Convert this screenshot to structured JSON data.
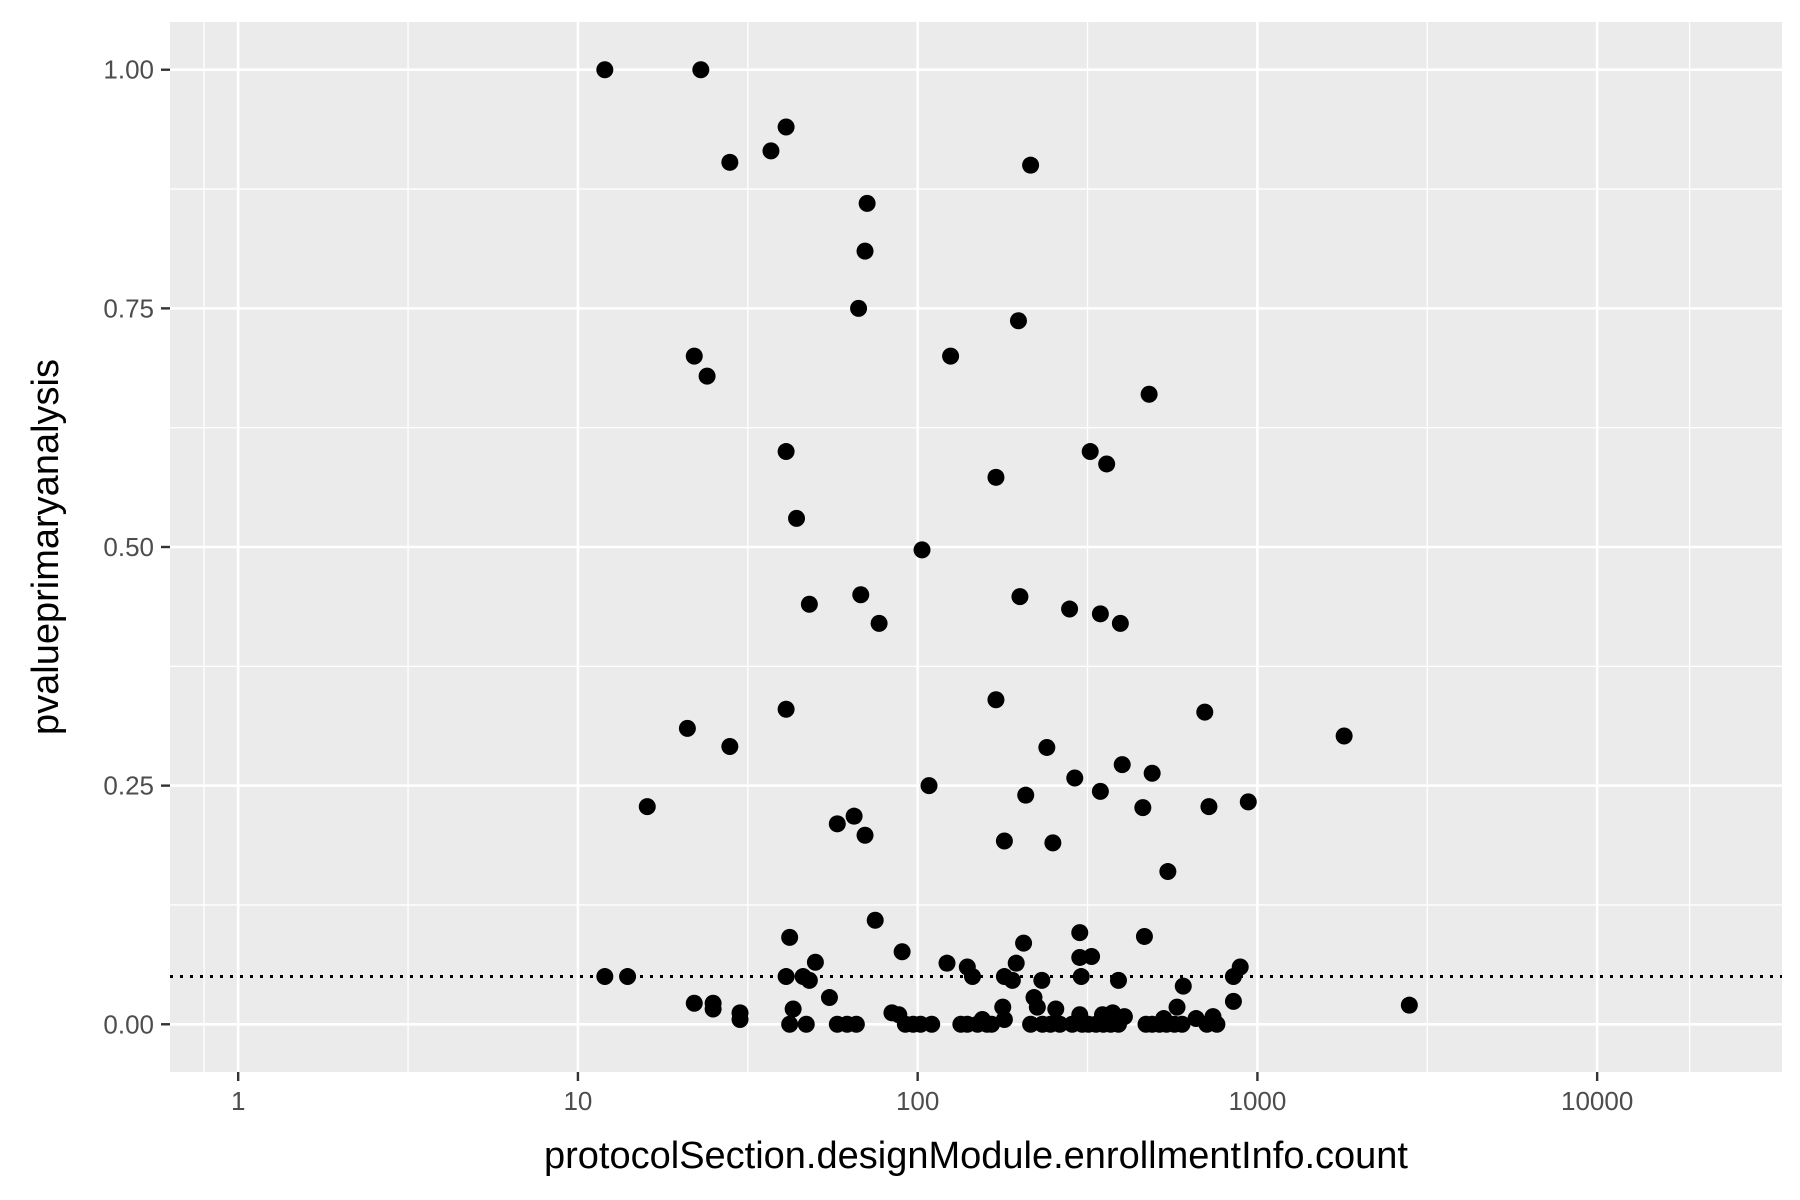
{
  "chart_data": {
    "type": "scatter",
    "title": "",
    "xlabel": "protocolSection.designModule.enrollmentInfo.count",
    "ylabel": "pvalueprimaryanalysis",
    "x_scale": "log10",
    "xlim": [
      0.63,
      35000
    ],
    "ylim": [
      -0.05,
      1.05
    ],
    "x_ticks": [
      1,
      10,
      100,
      1000,
      10000
    ],
    "x_tick_labels": [
      "1",
      "10",
      "100",
      "1000",
      "10000"
    ],
    "y_ticks": [
      0,
      0.25,
      0.5,
      0.75,
      1
    ],
    "y_tick_labels": [
      "0.00",
      "0.25",
      "0.50",
      "0.75",
      "1.00"
    ],
    "reference_line": {
      "y": 0.05,
      "style": "dotted",
      "color": "#000000"
    },
    "grid": true,
    "colors": {
      "panel": "#ebebeb",
      "grid": "#ffffff",
      "point": "#000000"
    },
    "points": [
      [
        12,
        1.0
      ],
      [
        23,
        1.0
      ],
      [
        41,
        0.94
      ],
      [
        37,
        0.915
      ],
      [
        28,
        0.903
      ],
      [
        215,
        0.9
      ],
      [
        71,
        0.86
      ],
      [
        70,
        0.81
      ],
      [
        67,
        0.75
      ],
      [
        198,
        0.737
      ],
      [
        22,
        0.7
      ],
      [
        125,
        0.7
      ],
      [
        24,
        0.679
      ],
      [
        480,
        0.66
      ],
      [
        41,
        0.6
      ],
      [
        322,
        0.6
      ],
      [
        360,
        0.587
      ],
      [
        170,
        0.573
      ],
      [
        44,
        0.53
      ],
      [
        103,
        0.497
      ],
      [
        68,
        0.45
      ],
      [
        200,
        0.448
      ],
      [
        48,
        0.44
      ],
      [
        280,
        0.435
      ],
      [
        345,
        0.43
      ],
      [
        77,
        0.42
      ],
      [
        395,
        0.42
      ],
      [
        170,
        0.34
      ],
      [
        41,
        0.33
      ],
      [
        700,
        0.327
      ],
      [
        21,
        0.31
      ],
      [
        1800,
        0.302
      ],
      [
        28,
        0.291
      ],
      [
        240,
        0.29
      ],
      [
        400,
        0.272
      ],
      [
        490,
        0.263
      ],
      [
        290,
        0.258
      ],
      [
        108,
        0.25
      ],
      [
        345,
        0.244
      ],
      [
        208,
        0.24
      ],
      [
        940,
        0.233
      ],
      [
        16,
        0.228
      ],
      [
        720,
        0.228
      ],
      [
        460,
        0.227
      ],
      [
        65,
        0.218
      ],
      [
        58,
        0.21
      ],
      [
        70,
        0.198
      ],
      [
        180,
        0.192
      ],
      [
        250,
        0.19
      ],
      [
        545,
        0.16
      ],
      [
        75,
        0.109
      ],
      [
        300,
        0.096
      ],
      [
        465,
        0.092
      ],
      [
        42,
        0.091
      ],
      [
        205,
        0.085
      ],
      [
        90,
        0.076
      ],
      [
        300,
        0.07
      ],
      [
        325,
        0.071
      ],
      [
        50,
        0.065
      ],
      [
        122,
        0.064
      ],
      [
        195,
        0.064
      ],
      [
        140,
        0.06
      ],
      [
        890,
        0.06
      ],
      [
        12,
        0.05
      ],
      [
        14,
        0.05
      ],
      [
        41,
        0.05
      ],
      [
        46,
        0.05
      ],
      [
        145,
        0.05
      ],
      [
        180,
        0.05
      ],
      [
        303,
        0.05
      ],
      [
        850,
        0.05
      ],
      [
        48,
        0.046
      ],
      [
        190,
        0.046
      ],
      [
        232,
        0.046
      ],
      [
        390,
        0.046
      ],
      [
        605,
        0.04
      ],
      [
        55,
        0.028
      ],
      [
        220,
        0.028
      ],
      [
        22,
        0.022
      ],
      [
        25,
        0.022
      ],
      [
        850,
        0.024
      ],
      [
        2800,
        0.02
      ],
      [
        25,
        0.016
      ],
      [
        43,
        0.016
      ],
      [
        178,
        0.018
      ],
      [
        225,
        0.018
      ],
      [
        255,
        0.016
      ],
      [
        580,
        0.018
      ],
      [
        30,
        0.012
      ],
      [
        30,
        0.005
      ],
      [
        84,
        0.012
      ],
      [
        88,
        0.01
      ],
      [
        300,
        0.01
      ],
      [
        350,
        0.01
      ],
      [
        375,
        0.012
      ],
      [
        406,
        0.008
      ],
      [
        740,
        0.008
      ],
      [
        530,
        0.006
      ],
      [
        660,
        0.006
      ],
      [
        155,
        0.005
      ],
      [
        180,
        0.005
      ],
      [
        42,
        0
      ],
      [
        47,
        0
      ],
      [
        58,
        0
      ],
      [
        62,
        0
      ],
      [
        66,
        0
      ],
      [
        92,
        0
      ],
      [
        97,
        0
      ],
      [
        102,
        0
      ],
      [
        110,
        0
      ],
      [
        134,
        0
      ],
      [
        140,
        0
      ],
      [
        150,
        0
      ],
      [
        160,
        0
      ],
      [
        165,
        0
      ],
      [
        215,
        0
      ],
      [
        233,
        0
      ],
      [
        246,
        0
      ],
      [
        262,
        0
      ],
      [
        285,
        0
      ],
      [
        305,
        0
      ],
      [
        318,
        0
      ],
      [
        335,
        0
      ],
      [
        352,
        0
      ],
      [
        370,
        0
      ],
      [
        390,
        0
      ],
      [
        470,
        0
      ],
      [
        490,
        0
      ],
      [
        515,
        0
      ],
      [
        540,
        0
      ],
      [
        570,
        0
      ],
      [
        600,
        0
      ],
      [
        710,
        0
      ],
      [
        760,
        0
      ]
    ]
  }
}
